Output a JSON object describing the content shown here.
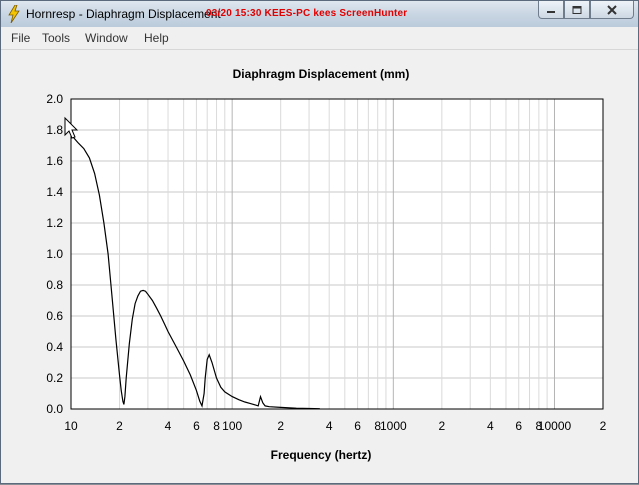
{
  "window": {
    "title": "Hornresp - Diaphragm Displacement",
    "overlay_text": "03/20  15:30  KEES-PC  kees  ScreenHunter"
  },
  "menu": {
    "items": [
      {
        "label": "File"
      },
      {
        "label": "Tools"
      },
      {
        "label": "Window"
      },
      {
        "label": "Help"
      }
    ]
  },
  "colors": {
    "overlay": "#e10000",
    "curve": "#000000",
    "grid": "#c8c8c8"
  },
  "chart_data": {
    "type": "line",
    "title": "Diaphragm Displacement (mm)",
    "xlabel": "Frequency (hertz)",
    "ylabel": "",
    "xscale": "log",
    "xlim": [
      10,
      20000
    ],
    "ylim": [
      0,
      2.0
    ],
    "grid": true,
    "x_tick_labels": [
      {
        "v": 10,
        "t": "10"
      },
      {
        "v": 20,
        "t": "2"
      },
      {
        "v": 40,
        "t": "4"
      },
      {
        "v": 60,
        "t": "6"
      },
      {
        "v": 80,
        "t": "8"
      },
      {
        "v": 100,
        "t": "100"
      },
      {
        "v": 200,
        "t": "2"
      },
      {
        "v": 400,
        "t": "4"
      },
      {
        "v": 600,
        "t": "6"
      },
      {
        "v": 800,
        "t": "8"
      },
      {
        "v": 1000,
        "t": "1000"
      },
      {
        "v": 2000,
        "t": "2"
      },
      {
        "v": 4000,
        "t": "4"
      },
      {
        "v": 6000,
        "t": "6"
      },
      {
        "v": 8000,
        "t": "8"
      },
      {
        "v": 10000,
        "t": "10000"
      },
      {
        "v": 20000,
        "t": "2"
      }
    ],
    "y_tick_labels": [
      "0.0",
      "0.2",
      "0.4",
      "0.6",
      "0.8",
      "1.0",
      "1.2",
      "1.4",
      "1.6",
      "1.8",
      "2.0"
    ],
    "series": [
      {
        "x": [
          10,
          11,
          12,
          13,
          14,
          15,
          16,
          17,
          18,
          19,
          20,
          20.5,
          21,
          21.3,
          21.6,
          22,
          23,
          24,
          25,
          26,
          27,
          28,
          29,
          30,
          32,
          34,
          36,
          38,
          40,
          45,
          50,
          55,
          60,
          63,
          65,
          67,
          68,
          70,
          72,
          75,
          80,
          85,
          90,
          100,
          110,
          120,
          130,
          140,
          145,
          150,
          155,
          160,
          170,
          200,
          250,
          300,
          350
        ],
        "y": [
          1.77,
          1.72,
          1.68,
          1.62,
          1.52,
          1.38,
          1.2,
          1.0,
          0.72,
          0.45,
          0.22,
          0.12,
          0.05,
          0.03,
          0.08,
          0.2,
          0.42,
          0.58,
          0.68,
          0.73,
          0.76,
          0.765,
          0.76,
          0.74,
          0.7,
          0.65,
          0.6,
          0.55,
          0.5,
          0.4,
          0.31,
          0.22,
          0.12,
          0.05,
          0.02,
          0.1,
          0.2,
          0.32,
          0.35,
          0.3,
          0.2,
          0.14,
          0.11,
          0.08,
          0.06,
          0.045,
          0.035,
          0.025,
          0.02,
          0.08,
          0.04,
          0.02,
          0.015,
          0.01,
          0.005,
          0.003,
          0.002
        ]
      }
    ]
  }
}
